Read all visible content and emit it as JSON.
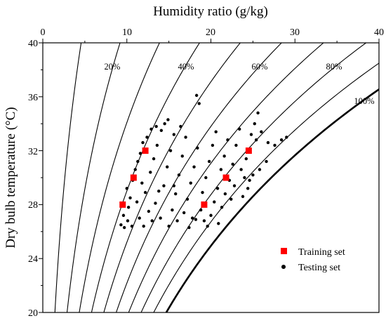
{
  "chart_data": {
    "type": "scatter",
    "title": "",
    "xlabel": "Humidity ratio (g/kg)",
    "ylabel": "Dry bulb temperature (°C)",
    "xlim": [
      0,
      40
    ],
    "ylim": [
      20,
      40
    ],
    "x_axis_position": "top",
    "x_ticks": [
      "0",
      "10",
      "20",
      "30",
      "40"
    ],
    "y_ticks": [
      "20",
      "24",
      "28",
      "32",
      "36",
      "40"
    ],
    "grid": false,
    "legend": {
      "position": "bottom-right",
      "entries": [
        "Training set",
        "Testing set"
      ]
    },
    "relative_humidity_curves": {
      "values_percent": [
        10,
        20,
        30,
        40,
        50,
        60,
        70,
        80,
        90,
        100
      ],
      "labels": [
        "20%",
        "40%",
        "60%",
        "80%",
        "100%"
      ]
    },
    "series": [
      {
        "name": "Training set",
        "marker": "square",
        "color": "#ff0000",
        "points": [
          {
            "x": 9.5,
            "y": 28.0
          },
          {
            "x": 10.8,
            "y": 30.0
          },
          {
            "x": 12.2,
            "y": 32.0
          },
          {
            "x": 19.2,
            "y": 28.0
          },
          {
            "x": 21.8,
            "y": 30.0
          },
          {
            "x": 24.5,
            "y": 32.0
          }
        ]
      },
      {
        "name": "Testing set",
        "marker": "circle",
        "color": "#000000",
        "points": [
          {
            "x": 9.3,
            "y": 26.5
          },
          {
            "x": 9.7,
            "y": 26.3
          },
          {
            "x": 10.1,
            "y": 26.8
          },
          {
            "x": 10.6,
            "y": 26.4
          },
          {
            "x": 9.6,
            "y": 27.2
          },
          {
            "x": 10.2,
            "y": 27.8
          },
          {
            "x": 10.4,
            "y": 28.5
          },
          {
            "x": 10.0,
            "y": 29.2
          },
          {
            "x": 10.7,
            "y": 29.8
          },
          {
            "x": 11.0,
            "y": 30.6
          },
          {
            "x": 11.3,
            "y": 31.2
          },
          {
            "x": 11.6,
            "y": 31.8
          },
          {
            "x": 11.9,
            "y": 32.6
          },
          {
            "x": 12.4,
            "y": 33.0
          },
          {
            "x": 12.9,
            "y": 33.6
          },
          {
            "x": 13.5,
            "y": 33.8
          },
          {
            "x": 14.1,
            "y": 33.5
          },
          {
            "x": 14.9,
            "y": 34.3
          },
          {
            "x": 11.5,
            "y": 27.0
          },
          {
            "x": 11.2,
            "y": 28.2
          },
          {
            "x": 12.0,
            "y": 26.4
          },
          {
            "x": 12.6,
            "y": 27.5
          },
          {
            "x": 12.2,
            "y": 28.9
          },
          {
            "x": 11.8,
            "y": 29.6
          },
          {
            "x": 12.8,
            "y": 30.4
          },
          {
            "x": 13.2,
            "y": 31.4
          },
          {
            "x": 13.6,
            "y": 32.4
          },
          {
            "x": 13.0,
            "y": 26.8
          },
          {
            "x": 13.4,
            "y": 28.1
          },
          {
            "x": 14.0,
            "y": 27.0
          },
          {
            "x": 14.4,
            "y": 29.4
          },
          {
            "x": 14.8,
            "y": 30.8
          },
          {
            "x": 15.2,
            "y": 32.0
          },
          {
            "x": 15.6,
            "y": 33.2
          },
          {
            "x": 15.0,
            "y": 26.4
          },
          {
            "x": 15.4,
            "y": 27.6
          },
          {
            "x": 15.8,
            "y": 28.8
          },
          {
            "x": 16.2,
            "y": 30.2
          },
          {
            "x": 16.6,
            "y": 31.6
          },
          {
            "x": 17.0,
            "y": 33.0
          },
          {
            "x": 16.0,
            "y": 26.8
          },
          {
            "x": 16.8,
            "y": 27.4
          },
          {
            "x": 17.2,
            "y": 28.4
          },
          {
            "x": 17.6,
            "y": 29.6
          },
          {
            "x": 18.0,
            "y": 30.8
          },
          {
            "x": 18.4,
            "y": 32.2
          },
          {
            "x": 17.4,
            "y": 26.3
          },
          {
            "x": 18.2,
            "y": 26.9
          },
          {
            "x": 18.8,
            "y": 27.6
          },
          {
            "x": 19.0,
            "y": 28.9
          },
          {
            "x": 19.4,
            "y": 30.0
          },
          {
            "x": 19.8,
            "y": 31.2
          },
          {
            "x": 20.2,
            "y": 32.4
          },
          {
            "x": 20.6,
            "y": 33.4
          },
          {
            "x": 19.6,
            "y": 26.4
          },
          {
            "x": 20.0,
            "y": 27.2
          },
          {
            "x": 20.4,
            "y": 28.2
          },
          {
            "x": 20.8,
            "y": 29.2
          },
          {
            "x": 21.2,
            "y": 30.6
          },
          {
            "x": 21.6,
            "y": 31.6
          },
          {
            "x": 22.0,
            "y": 32.8
          },
          {
            "x": 20.9,
            "y": 26.6
          },
          {
            "x": 21.3,
            "y": 27.8
          },
          {
            "x": 21.7,
            "y": 28.8
          },
          {
            "x": 22.2,
            "y": 29.8
          },
          {
            "x": 22.6,
            "y": 31.0
          },
          {
            "x": 23.0,
            "y": 32.4
          },
          {
            "x": 23.4,
            "y": 33.6
          },
          {
            "x": 22.4,
            "y": 28.4
          },
          {
            "x": 22.8,
            "y": 29.4
          },
          {
            "x": 23.6,
            "y": 30.6
          },
          {
            "x": 24.2,
            "y": 31.4
          },
          {
            "x": 24.8,
            "y": 33.2
          },
          {
            "x": 25.2,
            "y": 34.0
          },
          {
            "x": 25.6,
            "y": 34.8
          },
          {
            "x": 25.4,
            "y": 32.8
          },
          {
            "x": 26.0,
            "y": 33.4
          },
          {
            "x": 26.8,
            "y": 32.6
          },
          {
            "x": 28.4,
            "y": 32.8
          },
          {
            "x": 29.0,
            "y": 33.0
          },
          {
            "x": 27.6,
            "y": 32.4
          },
          {
            "x": 26.6,
            "y": 31.2
          },
          {
            "x": 25.0,
            "y": 30.2
          },
          {
            "x": 24.4,
            "y": 29.2
          },
          {
            "x": 23.8,
            "y": 28.6
          },
          {
            "x": 24.0,
            "y": 30.0
          },
          {
            "x": 25.8,
            "y": 30.6
          },
          {
            "x": 24.6,
            "y": 29.8
          },
          {
            "x": 18.6,
            "y": 35.5
          },
          {
            "x": 18.3,
            "y": 36.1
          },
          {
            "x": 14.5,
            "y": 34.0
          },
          {
            "x": 16.4,
            "y": 33.8
          },
          {
            "x": 13.8,
            "y": 29.0
          },
          {
            "x": 15.6,
            "y": 29.4
          },
          {
            "x": 17.8,
            "y": 27.0
          },
          {
            "x": 19.2,
            "y": 26.8
          }
        ]
      }
    ]
  }
}
